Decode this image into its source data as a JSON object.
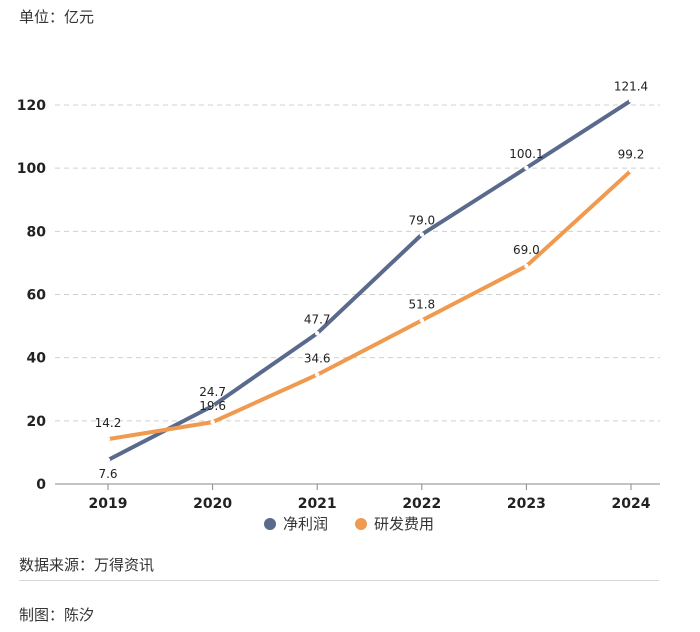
{
  "header": {
    "unit": "单位：亿元"
  },
  "footer": {
    "source": "数据来源：万得资讯",
    "author": "制图：陈汐"
  },
  "chart_data": {
    "type": "line",
    "categories": [
      "2019",
      "2020",
      "2021",
      "2022",
      "2023",
      "2024"
    ],
    "series": [
      {
        "name": "净利润",
        "color": "#5a6a8c",
        "values": [
          7.6,
          24.7,
          47.7,
          79.0,
          100.1,
          121.4
        ]
      },
      {
        "name": "研发费用",
        "color": "#ef9a4f",
        "values": [
          14.2,
          19.6,
          34.6,
          51.8,
          69.0,
          99.2
        ]
      }
    ],
    "ylim": [
      0,
      120
    ],
    "yticks": [
      "0",
      "20",
      "40",
      "60",
      "80",
      "100",
      "120"
    ],
    "grid": true,
    "legend_position": "bottom"
  }
}
